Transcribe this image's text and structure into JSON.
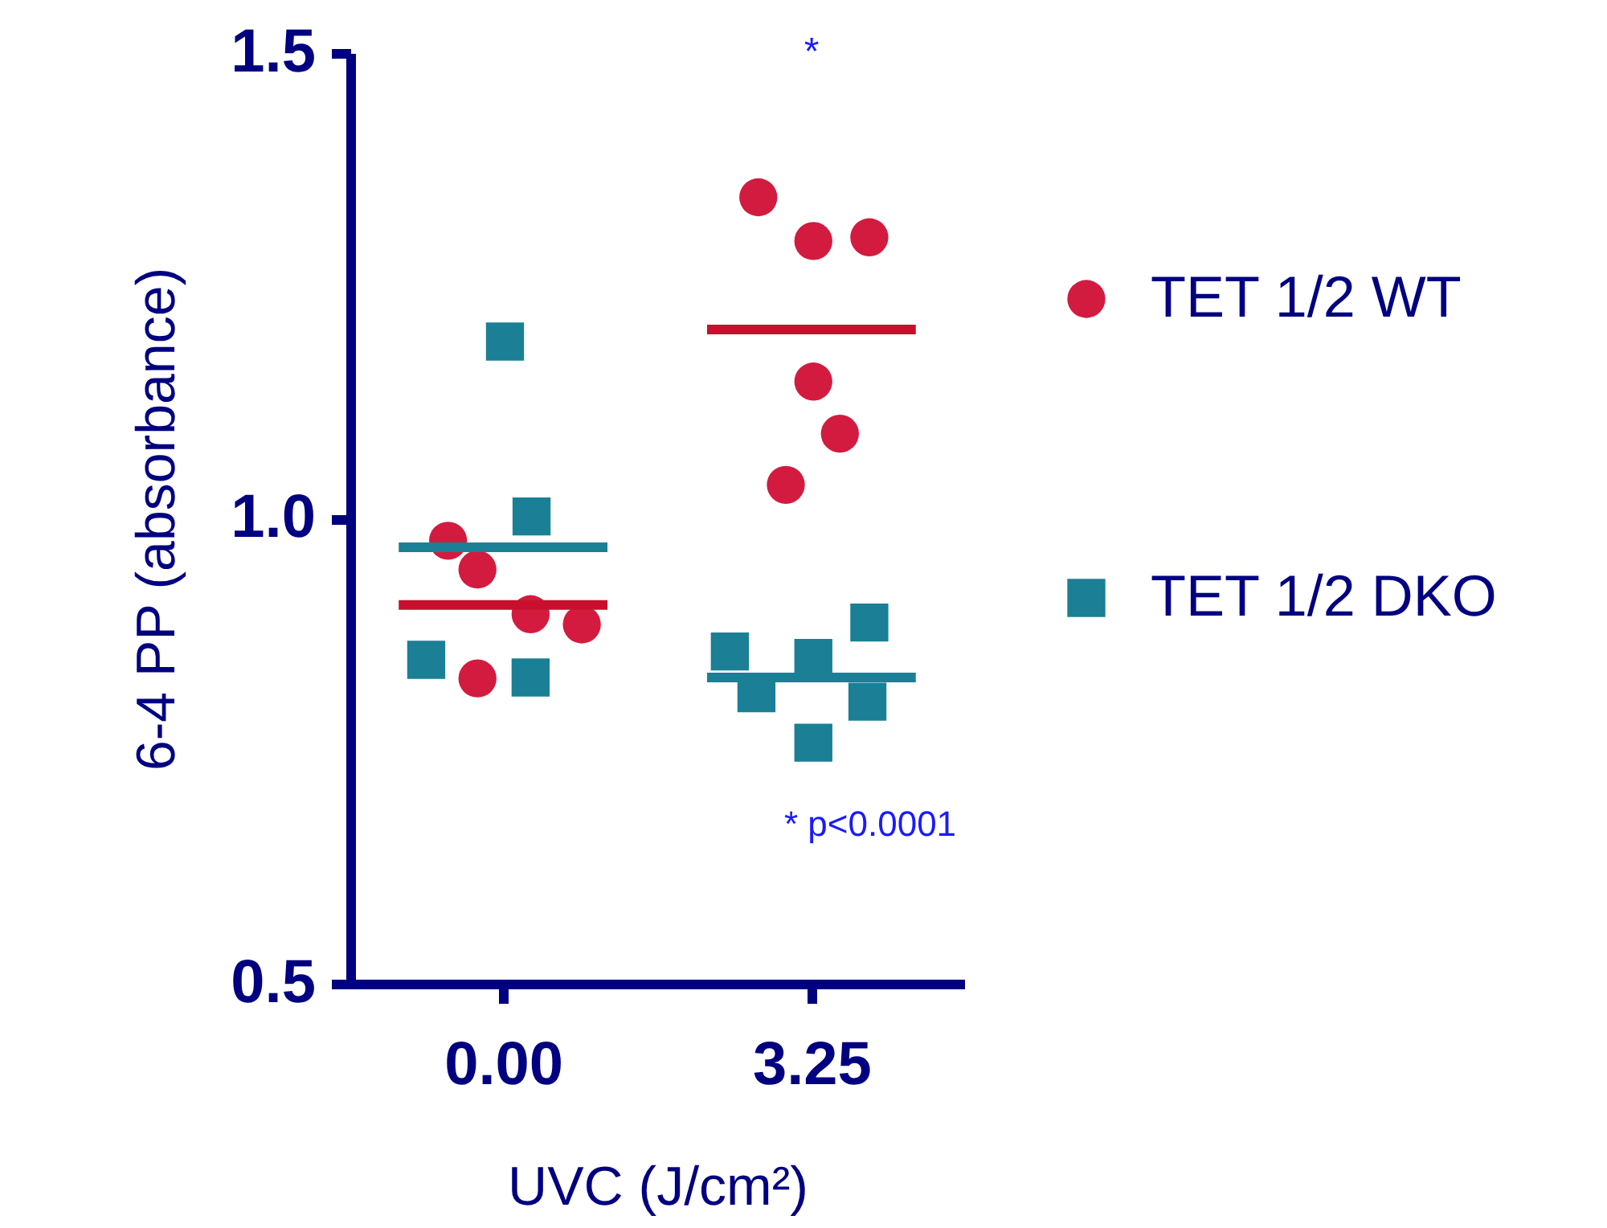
{
  "chart_data": {
    "type": "scatter",
    "xlabel": "UVC (J/cm²)",
    "ylabel": "6-4 PP (absorbance)",
    "xlim": [
      -1.61,
      4.86
    ],
    "xticks": [
      {
        "value": 0,
        "label": "0.00"
      },
      {
        "value": 3.25,
        "label": "3.25"
      }
    ],
    "ylim": [
      0.5,
      1.5
    ],
    "yticks": [
      0.5,
      {
        "value": 1,
        "label": "1.0"
      },
      1.5
    ],
    "grid": false,
    "legend": "right",
    "series": [
      {
        "name": "TET 1/2 WT",
        "marker": "circle",
        "color": "#d31b3f",
        "x": [
          -0.58,
          -0.27,
          0.29,
          0.83,
          -0.27,
          2.69,
          3.86,
          3.27,
          3.27,
          3.55,
          2.98
        ],
        "values": [
          0.976,
          0.945,
          0.897,
          0.886,
          0.828,
          1.345,
          1.302,
          1.298,
          1.147,
          1.091,
          1.036
        ]
      },
      {
        "name": "TET 1/2 DKO",
        "marker": "square",
        "color": "#1b7f96",
        "x": [
          0.02,
          0.3,
          -0.81,
          0.29,
          3.86,
          2.39,
          3.27,
          2.67,
          3.84,
          3.27
        ],
        "values": [
          1.19,
          1.002,
          0.848,
          0.829,
          0.888,
          0.857,
          0.85,
          0.812,
          0.803,
          0.759
        ]
      },
      {
        "type": "line",
        "color": "#1b7f96",
        "x": [
          -1.1,
          1.1
        ],
        "values": [
          0.969,
          0.969
        ]
      },
      {
        "type": "line",
        "color": "#1b7f96",
        "x": [
          2.15,
          4.35
        ],
        "values": [
          0.829,
          0.829
        ]
      },
      {
        "type": "line",
        "color": "#c8102e",
        "x": [
          -1.1,
          1.1
        ],
        "values": [
          0.907,
          0.907
        ]
      },
      {
        "type": "line",
        "color": "#c8102e",
        "x": [
          2.15,
          4.35
        ],
        "values": [
          1.203,
          1.203
        ]
      }
    ],
    "line_style": "solid",
    "annotations": [
      "*",
      "* p<0.0001"
    ]
  }
}
